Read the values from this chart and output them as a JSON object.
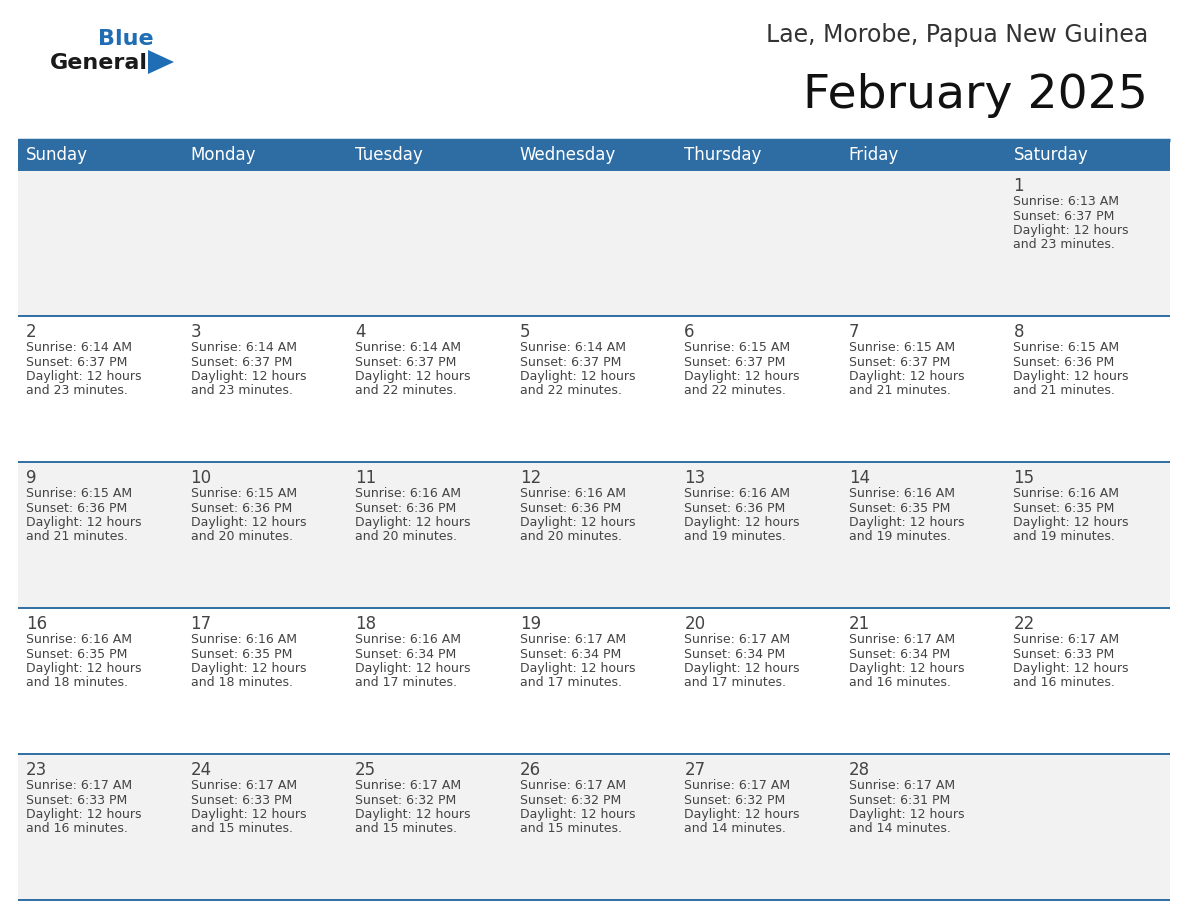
{
  "title": "February 2025",
  "subtitle": "Lae, Morobe, Papua New Guinea",
  "header_bg_color": "#2E6DA4",
  "header_text_color": "#FFFFFF",
  "row_bg_odd": "#F2F2F2",
  "row_bg_even": "#FFFFFF",
  "separator_color": "#2E6DA4",
  "text_color": "#444444",
  "day_headers": [
    "Sunday",
    "Monday",
    "Tuesday",
    "Wednesday",
    "Thursday",
    "Friday",
    "Saturday"
  ],
  "logo_general_color": "#1a1a1a",
  "logo_blue_color": "#1F6DB5",
  "calendar_data": [
    [
      null,
      null,
      null,
      null,
      null,
      null,
      {
        "day": "1",
        "sunrise": "6:13 AM",
        "sunset": "6:37 PM",
        "daylight_line1": "Daylight: 12 hours",
        "daylight_line2": "and 23 minutes."
      }
    ],
    [
      {
        "day": "2",
        "sunrise": "6:14 AM",
        "sunset": "6:37 PM",
        "daylight_line1": "Daylight: 12 hours",
        "daylight_line2": "and 23 minutes."
      },
      {
        "day": "3",
        "sunrise": "6:14 AM",
        "sunset": "6:37 PM",
        "daylight_line1": "Daylight: 12 hours",
        "daylight_line2": "and 23 minutes."
      },
      {
        "day": "4",
        "sunrise": "6:14 AM",
        "sunset": "6:37 PM",
        "daylight_line1": "Daylight: 12 hours",
        "daylight_line2": "and 22 minutes."
      },
      {
        "day": "5",
        "sunrise": "6:14 AM",
        "sunset": "6:37 PM",
        "daylight_line1": "Daylight: 12 hours",
        "daylight_line2": "and 22 minutes."
      },
      {
        "day": "6",
        "sunrise": "6:15 AM",
        "sunset": "6:37 PM",
        "daylight_line1": "Daylight: 12 hours",
        "daylight_line2": "and 22 minutes."
      },
      {
        "day": "7",
        "sunrise": "6:15 AM",
        "sunset": "6:37 PM",
        "daylight_line1": "Daylight: 12 hours",
        "daylight_line2": "and 21 minutes."
      },
      {
        "day": "8",
        "sunrise": "6:15 AM",
        "sunset": "6:36 PM",
        "daylight_line1": "Daylight: 12 hours",
        "daylight_line2": "and 21 minutes."
      }
    ],
    [
      {
        "day": "9",
        "sunrise": "6:15 AM",
        "sunset": "6:36 PM",
        "daylight_line1": "Daylight: 12 hours",
        "daylight_line2": "and 21 minutes."
      },
      {
        "day": "10",
        "sunrise": "6:15 AM",
        "sunset": "6:36 PM",
        "daylight_line1": "Daylight: 12 hours",
        "daylight_line2": "and 20 minutes."
      },
      {
        "day": "11",
        "sunrise": "6:16 AM",
        "sunset": "6:36 PM",
        "daylight_line1": "Daylight: 12 hours",
        "daylight_line2": "and 20 minutes."
      },
      {
        "day": "12",
        "sunrise": "6:16 AM",
        "sunset": "6:36 PM",
        "daylight_line1": "Daylight: 12 hours",
        "daylight_line2": "and 20 minutes."
      },
      {
        "day": "13",
        "sunrise": "6:16 AM",
        "sunset": "6:36 PM",
        "daylight_line1": "Daylight: 12 hours",
        "daylight_line2": "and 19 minutes."
      },
      {
        "day": "14",
        "sunrise": "6:16 AM",
        "sunset": "6:35 PM",
        "daylight_line1": "Daylight: 12 hours",
        "daylight_line2": "and 19 minutes."
      },
      {
        "day": "15",
        "sunrise": "6:16 AM",
        "sunset": "6:35 PM",
        "daylight_line1": "Daylight: 12 hours",
        "daylight_line2": "and 19 minutes."
      }
    ],
    [
      {
        "day": "16",
        "sunrise": "6:16 AM",
        "sunset": "6:35 PM",
        "daylight_line1": "Daylight: 12 hours",
        "daylight_line2": "and 18 minutes."
      },
      {
        "day": "17",
        "sunrise": "6:16 AM",
        "sunset": "6:35 PM",
        "daylight_line1": "Daylight: 12 hours",
        "daylight_line2": "and 18 minutes."
      },
      {
        "day": "18",
        "sunrise": "6:16 AM",
        "sunset": "6:34 PM",
        "daylight_line1": "Daylight: 12 hours",
        "daylight_line2": "and 17 minutes."
      },
      {
        "day": "19",
        "sunrise": "6:17 AM",
        "sunset": "6:34 PM",
        "daylight_line1": "Daylight: 12 hours",
        "daylight_line2": "and 17 minutes."
      },
      {
        "day": "20",
        "sunrise": "6:17 AM",
        "sunset": "6:34 PM",
        "daylight_line1": "Daylight: 12 hours",
        "daylight_line2": "and 17 minutes."
      },
      {
        "day": "21",
        "sunrise": "6:17 AM",
        "sunset": "6:34 PM",
        "daylight_line1": "Daylight: 12 hours",
        "daylight_line2": "and 16 minutes."
      },
      {
        "day": "22",
        "sunrise": "6:17 AM",
        "sunset": "6:33 PM",
        "daylight_line1": "Daylight: 12 hours",
        "daylight_line2": "and 16 minutes."
      }
    ],
    [
      {
        "day": "23",
        "sunrise": "6:17 AM",
        "sunset": "6:33 PM",
        "daylight_line1": "Daylight: 12 hours",
        "daylight_line2": "and 16 minutes."
      },
      {
        "day": "24",
        "sunrise": "6:17 AM",
        "sunset": "6:33 PM",
        "daylight_line1": "Daylight: 12 hours",
        "daylight_line2": "and 15 minutes."
      },
      {
        "day": "25",
        "sunrise": "6:17 AM",
        "sunset": "6:32 PM",
        "daylight_line1": "Daylight: 12 hours",
        "daylight_line2": "and 15 minutes."
      },
      {
        "day": "26",
        "sunrise": "6:17 AM",
        "sunset": "6:32 PM",
        "daylight_line1": "Daylight: 12 hours",
        "daylight_line2": "and 15 minutes."
      },
      {
        "day": "27",
        "sunrise": "6:17 AM",
        "sunset": "6:32 PM",
        "daylight_line1": "Daylight: 12 hours",
        "daylight_line2": "and 14 minutes."
      },
      {
        "day": "28",
        "sunrise": "6:17 AM",
        "sunset": "6:31 PM",
        "daylight_line1": "Daylight: 12 hours",
        "daylight_line2": "and 14 minutes."
      },
      null
    ]
  ]
}
